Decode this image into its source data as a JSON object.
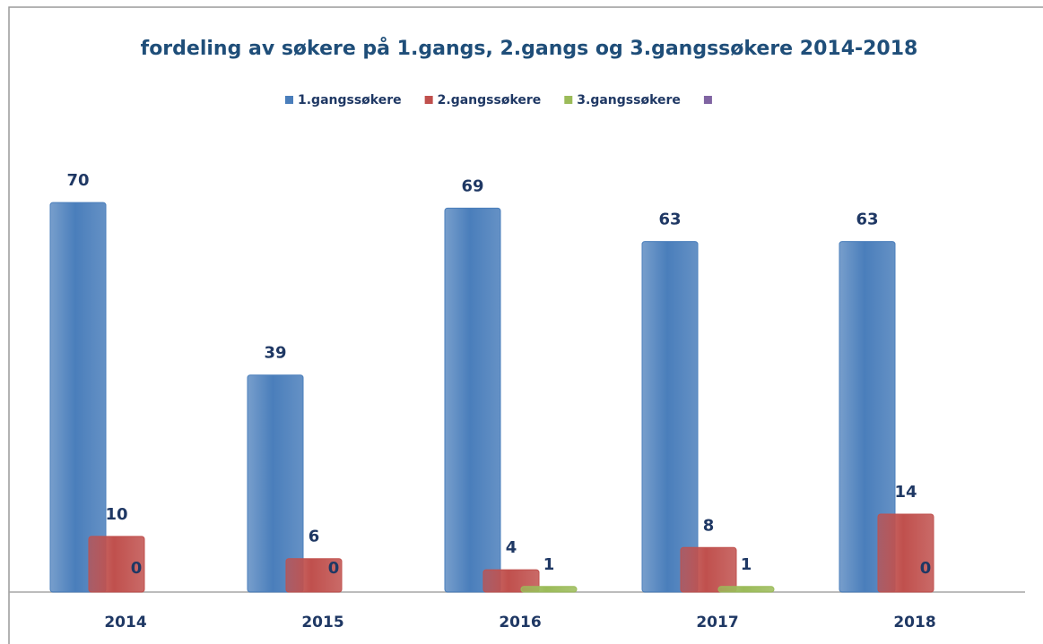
{
  "chart_data": {
    "type": "bar",
    "title": "fordeling av søkere på 1.gangs, 2.gangs og 3.gangssøkere 2014-2018",
    "categories": [
      "2014",
      "2015",
      "2016",
      "2017",
      "2018"
    ],
    "series": [
      {
        "name": "1.gangssøkere",
        "color": "#4a7ebb",
        "values": [
          70,
          39,
          69,
          63,
          63
        ]
      },
      {
        "name": "2.gangssøkere",
        "color": "#c0504d",
        "values": [
          10,
          6,
          4,
          8,
          14
        ]
      },
      {
        "name": "3.gangssøkere",
        "color": "#9bbb59",
        "values": [
          0,
          0,
          1,
          1,
          0
        ]
      },
      {
        "color": "#8064a2",
        "values": [
          null,
          null,
          null,
          null,
          null
        ]
      }
    ],
    "ylim": [
      0,
      80
    ],
    "grid": false,
    "legend": "top"
  }
}
